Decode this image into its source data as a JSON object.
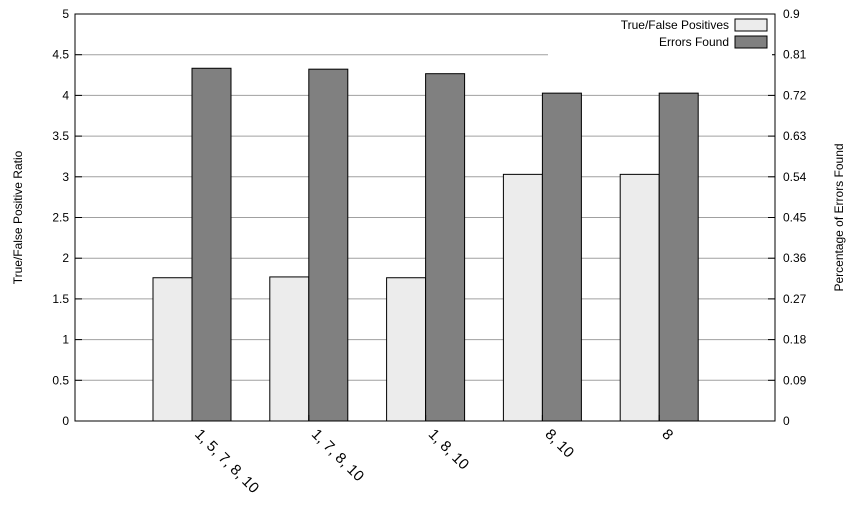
{
  "chart_data": {
    "type": "bar",
    "categories": [
      "1, 5, 7, 8, 10",
      "1, 7, 8, 10",
      "1, 8, 10",
      "8, 10",
      "8"
    ],
    "series": [
      {
        "name": "True/False Positives",
        "axis": "left",
        "color": "#ececec",
        "values": [
          1.76,
          1.77,
          1.76,
          3.03,
          3.03
        ]
      },
      {
        "name": "Errors Found",
        "axis": "right",
        "color": "#808080",
        "values": [
          0.78,
          0.778,
          0.768,
          0.725,
          0.725
        ]
      }
    ],
    "ylabel": "True/False Positive Ratio",
    "y2label": "Percentage of Errors Found",
    "ylim": [
      0,
      5
    ],
    "y2lim": [
      0,
      0.9
    ],
    "yticks": [
      "0",
      "0.5",
      "1",
      "1.5",
      "2",
      "2.5",
      "3",
      "3.5",
      "4",
      "4.5",
      "5"
    ],
    "y2ticks": [
      "0",
      "0.09",
      "0.18",
      "0.27",
      "0.36",
      "0.45",
      "0.54",
      "0.63",
      "0.72",
      "0.81",
      "0.9"
    ],
    "grid": true,
    "legend_position": "top-right"
  }
}
